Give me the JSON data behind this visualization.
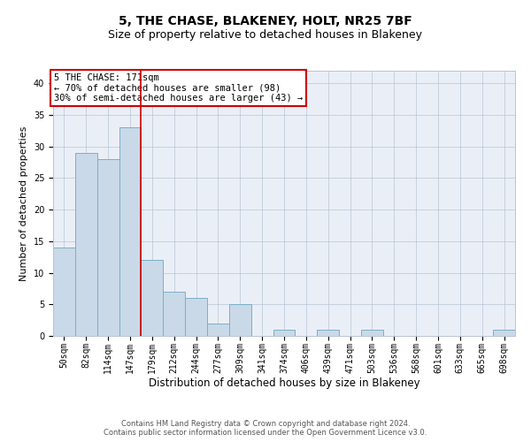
{
  "title": "5, THE CHASE, BLAKENEY, HOLT, NR25 7BF",
  "subtitle": "Size of property relative to detached houses in Blakeney",
  "xlabel": "Distribution of detached houses by size in Blakeney",
  "ylabel": "Number of detached properties",
  "categories": [
    "50sqm",
    "82sqm",
    "114sqm",
    "147sqm",
    "179sqm",
    "212sqm",
    "244sqm",
    "277sqm",
    "309sqm",
    "341sqm",
    "374sqm",
    "406sqm",
    "439sqm",
    "471sqm",
    "503sqm",
    "536sqm",
    "568sqm",
    "601sqm",
    "633sqm",
    "665sqm",
    "698sqm"
  ],
  "values": [
    14,
    29,
    28,
    33,
    12,
    7,
    6,
    2,
    5,
    0,
    1,
    0,
    1,
    0,
    1,
    0,
    0,
    0,
    0,
    0,
    1
  ],
  "bar_color": "#c9d9e8",
  "bar_edge_color": "#7aafc8",
  "property_line_color": "#cc0000",
  "annotation_box_color": "#cc0000",
  "ylim": [
    0,
    42
  ],
  "yticks": [
    0,
    5,
    10,
    15,
    20,
    25,
    30,
    35,
    40
  ],
  "grid_color": "#b8c4d4",
  "background_color": "#eaeff7",
  "footer_line1": "Contains HM Land Registry data © Crown copyright and database right 2024.",
  "footer_line2": "Contains public sector information licensed under the Open Government Licence v3.0.",
  "title_fontsize": 10,
  "subtitle_fontsize": 9,
  "xlabel_fontsize": 8.5,
  "ylabel_fontsize": 8,
  "tick_fontsize": 7,
  "footer_fontsize": 6,
  "annotation_fontsize": 7.5
}
